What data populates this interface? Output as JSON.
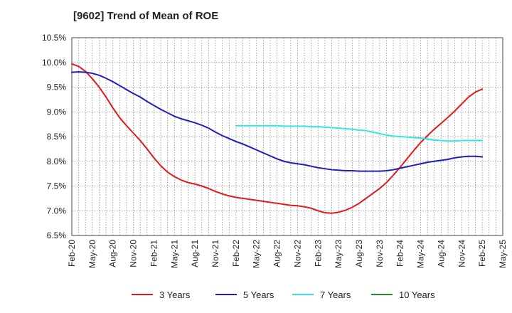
{
  "chart_data": {
    "type": "line",
    "title": "[9602]  Trend of Mean of ROE",
    "xlabel": "",
    "ylabel": "",
    "ylim": [
      6.5,
      10.5
    ],
    "y_ticks": [
      "6.5%",
      "7.0%",
      "7.5%",
      "8.0%",
      "8.5%",
      "9.0%",
      "9.5%",
      "10.0%",
      "10.5%"
    ],
    "x_ticks": [
      "Feb-20",
      "May-20",
      "Aug-20",
      "Nov-20",
      "Feb-21",
      "May-21",
      "Aug-21",
      "Nov-21",
      "Feb-22",
      "May-22",
      "Aug-22",
      "Nov-22",
      "Feb-23",
      "May-23",
      "Aug-23",
      "Nov-23",
      "Feb-24",
      "May-24",
      "Aug-24",
      "Nov-24",
      "Feb-25",
      "May-25"
    ],
    "grid": true,
    "legend_position": "bottom",
    "series": [
      {
        "name": "3 Years",
        "color": "#e31a1c",
        "x": [
          "Feb-20",
          "Mar-20",
          "Apr-20",
          "May-20",
          "Jun-20",
          "Jul-20",
          "Aug-20",
          "Sep-20",
          "Oct-20",
          "Nov-20",
          "Dec-20",
          "Jan-21",
          "Feb-21",
          "Mar-21",
          "Apr-21",
          "May-21",
          "Jun-21",
          "Jul-21",
          "Aug-21",
          "Sep-21",
          "Oct-21",
          "Nov-21",
          "Dec-21",
          "Jan-22",
          "Feb-22",
          "Mar-22",
          "Apr-22",
          "May-22",
          "Jun-22",
          "Jul-22",
          "Aug-22",
          "Sep-22",
          "Oct-22",
          "Nov-22",
          "Dec-22",
          "Jan-23",
          "Feb-23",
          "Mar-23",
          "Apr-23",
          "May-23",
          "Jun-23",
          "Jul-23",
          "Aug-23",
          "Sep-23",
          "Oct-23",
          "Nov-23",
          "Dec-23",
          "Jan-24",
          "Feb-24",
          "Mar-24",
          "Apr-24",
          "May-24",
          "Jun-24",
          "Jul-24",
          "Aug-24",
          "Sep-24",
          "Oct-24",
          "Nov-24",
          "Dec-24",
          "Jan-25",
          "Feb-25"
        ],
        "values": [
          9.97,
          9.92,
          9.82,
          9.67,
          9.5,
          9.3,
          9.08,
          8.88,
          8.72,
          8.57,
          8.42,
          8.25,
          8.07,
          7.91,
          7.78,
          7.69,
          7.62,
          7.57,
          7.54,
          7.5,
          7.45,
          7.39,
          7.34,
          7.3,
          7.27,
          7.25,
          7.23,
          7.21,
          7.19,
          7.17,
          7.15,
          7.13,
          7.11,
          7.1,
          7.08,
          7.05,
          7.0,
          6.96,
          6.95,
          6.97,
          7.01,
          7.07,
          7.15,
          7.25,
          7.35,
          7.45,
          7.57,
          7.72,
          7.88,
          8.05,
          8.22,
          8.38,
          8.52,
          8.65,
          8.77,
          8.89,
          9.02,
          9.16,
          9.3,
          9.4,
          9.46
        ]
      },
      {
        "name": "5 Years",
        "color": "#1f1fbf",
        "x": [
          "Feb-20",
          "Mar-20",
          "Apr-20",
          "May-20",
          "Jun-20",
          "Jul-20",
          "Aug-20",
          "Sep-20",
          "Oct-20",
          "Nov-20",
          "Dec-20",
          "Jan-21",
          "Feb-21",
          "Mar-21",
          "Apr-21",
          "May-21",
          "Jun-21",
          "Jul-21",
          "Aug-21",
          "Sep-21",
          "Oct-21",
          "Nov-21",
          "Dec-21",
          "Jan-22",
          "Feb-22",
          "Mar-22",
          "Apr-22",
          "May-22",
          "Jun-22",
          "Jul-22",
          "Aug-22",
          "Sep-22",
          "Oct-22",
          "Nov-22",
          "Dec-22",
          "Jan-23",
          "Feb-23",
          "Mar-23",
          "Apr-23",
          "May-23",
          "Jun-23",
          "Jul-23",
          "Aug-23",
          "Sep-23",
          "Oct-23",
          "Nov-23",
          "Dec-23",
          "Jan-24",
          "Feb-24",
          "Mar-24",
          "Apr-24",
          "May-24",
          "Jun-24",
          "Jul-24",
          "Aug-24",
          "Sep-24",
          "Oct-24",
          "Nov-24",
          "Dec-24",
          "Jan-25",
          "Feb-25"
        ],
        "values": [
          9.8,
          9.81,
          9.8,
          9.78,
          9.74,
          9.68,
          9.61,
          9.53,
          9.45,
          9.37,
          9.3,
          9.21,
          9.13,
          9.05,
          8.98,
          8.91,
          8.86,
          8.82,
          8.78,
          8.73,
          8.67,
          8.59,
          8.52,
          8.46,
          8.4,
          8.35,
          8.29,
          8.23,
          8.17,
          8.11,
          8.05,
          8.0,
          7.97,
          7.95,
          7.93,
          7.9,
          7.87,
          7.85,
          7.83,
          7.82,
          7.81,
          7.81,
          7.8,
          7.8,
          7.8,
          7.8,
          7.81,
          7.83,
          7.86,
          7.89,
          7.92,
          7.95,
          7.98,
          8.0,
          8.02,
          8.04,
          8.07,
          8.09,
          8.1,
          8.1,
          8.09
        ]
      },
      {
        "name": "7 Years",
        "color": "#33e6e6",
        "x": [
          "Feb-22",
          "Mar-22",
          "Apr-22",
          "May-22",
          "Jun-22",
          "Jul-22",
          "Aug-22",
          "Sep-22",
          "Oct-22",
          "Nov-22",
          "Dec-22",
          "Jan-23",
          "Feb-23",
          "Mar-23",
          "Apr-23",
          "May-23",
          "Jun-23",
          "Jul-23",
          "Aug-23",
          "Sep-23",
          "Oct-23",
          "Nov-23",
          "Dec-23",
          "Jan-24",
          "Feb-24",
          "Mar-24",
          "Apr-24",
          "May-24",
          "Jun-24",
          "Jul-24",
          "Aug-24",
          "Sep-24",
          "Oct-24",
          "Nov-24",
          "Dec-24",
          "Jan-25",
          "Feb-25"
        ],
        "values": [
          8.72,
          8.72,
          8.72,
          8.72,
          8.72,
          8.72,
          8.72,
          8.71,
          8.71,
          8.71,
          8.71,
          8.7,
          8.7,
          8.69,
          8.68,
          8.67,
          8.66,
          8.65,
          8.63,
          8.62,
          8.59,
          8.56,
          8.53,
          8.51,
          8.5,
          8.49,
          8.48,
          8.47,
          8.45,
          8.43,
          8.42,
          8.41,
          8.41,
          8.42,
          8.42,
          8.42,
          8.42
        ]
      },
      {
        "name": "10 Years",
        "color": "#2e8b2e",
        "x": [],
        "values": []
      }
    ]
  }
}
